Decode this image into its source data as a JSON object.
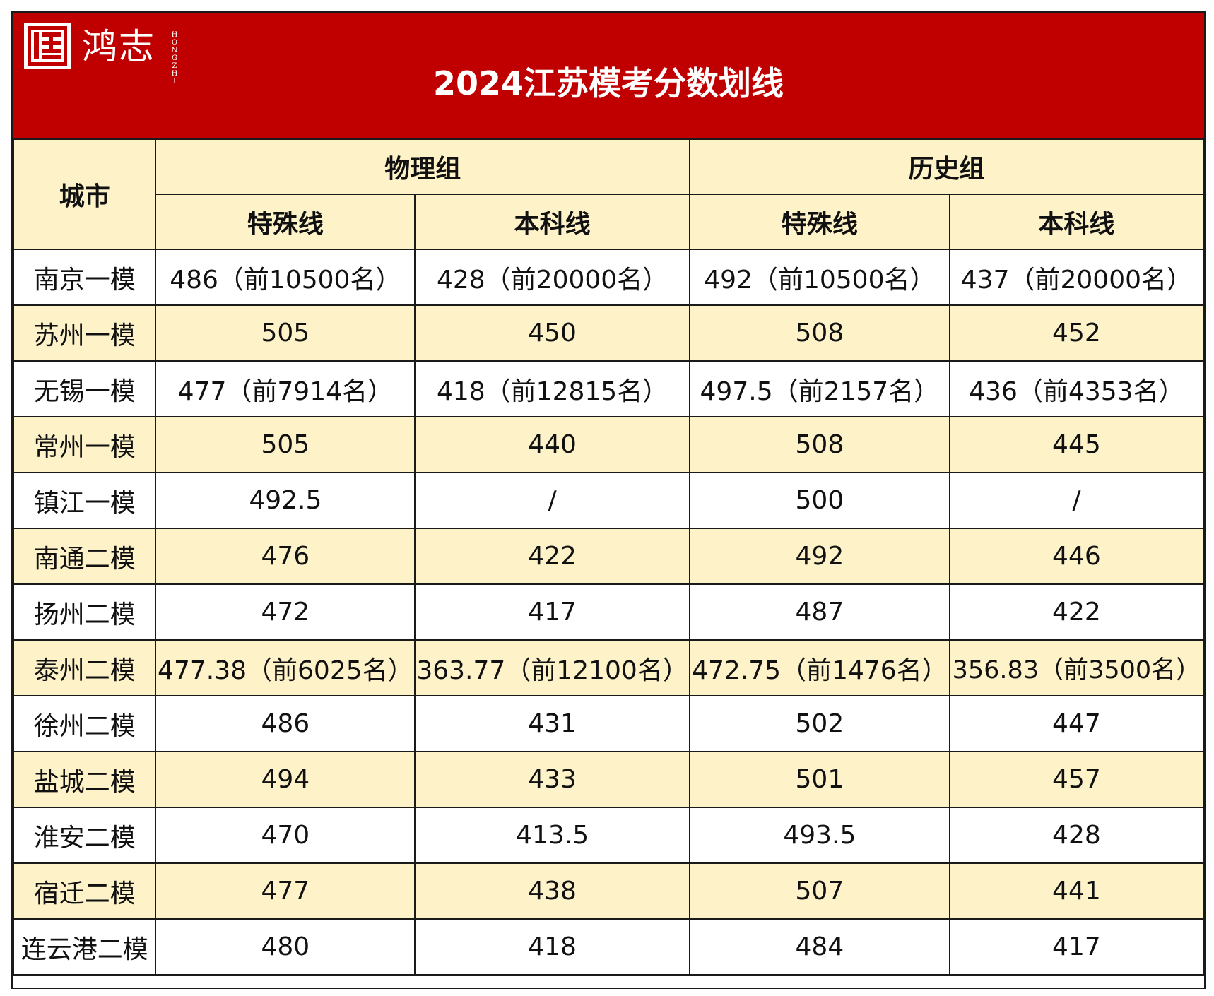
{
  "brand": {
    "name": "鸿志",
    "pinyin": [
      "H",
      "O",
      "N",
      "G",
      "Z",
      "H",
      "I"
    ]
  },
  "title": "2024江苏模考分数划线",
  "headers": {
    "city": "城市",
    "group_physics": "物理组",
    "group_history": "历史组",
    "special": "特殊线",
    "undergrad": "本科线"
  },
  "rows": [
    [
      "南京一模",
      "486（前10500名）",
      "428（前20000名）",
      "492（前10500名）",
      "437（前20000名）"
    ],
    [
      "苏州一模",
      "505",
      "450",
      "508",
      "452"
    ],
    [
      "无锡一模",
      "477（前7914名）",
      "418（前12815名）",
      "497.5（前2157名）",
      "436（前4353名）"
    ],
    [
      "常州一模",
      "505",
      "440",
      "508",
      "445"
    ],
    [
      "镇江一模",
      "492.5",
      "/",
      "500",
      "/"
    ],
    [
      "南通二模",
      "476",
      "422",
      "492",
      "446"
    ],
    [
      "扬州二模",
      "472",
      "417",
      "487",
      "422"
    ],
    [
      "泰州二模",
      "477.38（前6025名）",
      "363.77（前12100名）",
      "472.75（前1476名）",
      "356.83（前3500名）"
    ],
    [
      "徐州二模",
      "486",
      "431",
      "502",
      "447"
    ],
    [
      "盐城二模",
      "494",
      "433",
      "501",
      "457"
    ],
    [
      "淮安二模",
      "470",
      "413.5",
      "493.5",
      "428"
    ],
    [
      "宿迁二模",
      "477",
      "438",
      "507",
      "441"
    ],
    [
      "连云港二模",
      "480",
      "418",
      "484",
      "417"
    ]
  ],
  "colors": {
    "banner": "#c00000",
    "header_bg": "#fdf2c8",
    "alt_row_bg": "#fdf2c8",
    "border": "#1a1a1a"
  }
}
